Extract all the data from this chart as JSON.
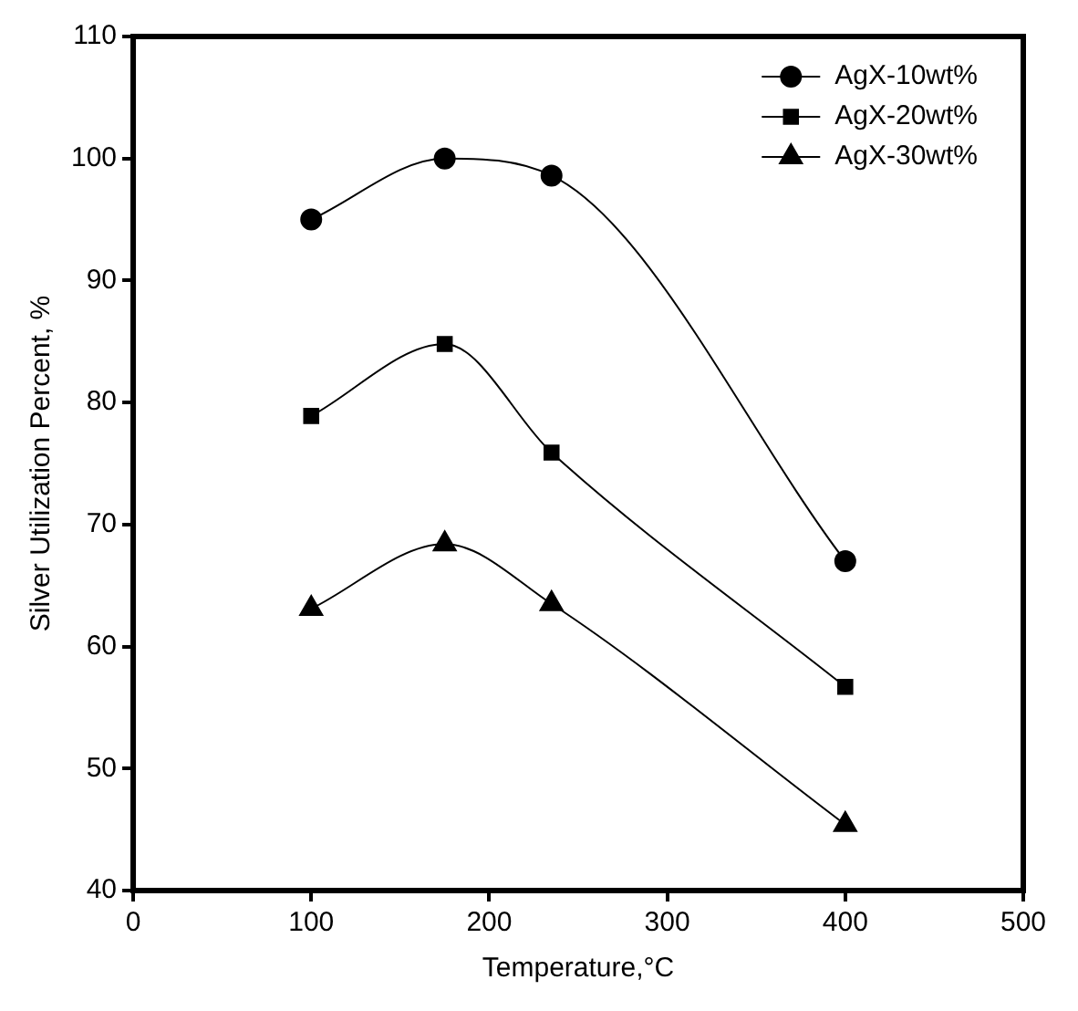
{
  "chart_data": {
    "type": "line",
    "xlabel": "Temperature,°C",
    "ylabel": "Silver Utilization Percent, %",
    "xlim": [
      0,
      500
    ],
    "xticks": [
      0,
      100,
      200,
      300,
      400,
      500
    ],
    "ylim": [
      40,
      110
    ],
    "yticks": [
      40,
      50,
      60,
      70,
      80,
      90,
      100,
      110
    ],
    "grid": false,
    "legend": "top right",
    "line_style": "solid",
    "series": [
      {
        "name": "AgX-10wt%",
        "color": "#000000",
        "marker": "circle",
        "x": [
          100,
          175,
          235,
          400
        ],
        "values": [
          95,
          100,
          98.6,
          67
        ]
      },
      {
        "name": "AgX-20wt%",
        "color": "#000000",
        "marker": "square",
        "x": [
          100,
          175,
          235,
          400
        ],
        "values": [
          78.9,
          84.8,
          75.9,
          56.7
        ]
      },
      {
        "name": "AgX-30wt%",
        "color": "#000000",
        "marker": "triangle",
        "x": [
          100,
          175,
          235,
          400
        ],
        "values": [
          63.1,
          68.4,
          63.5,
          45.4
        ]
      }
    ]
  }
}
